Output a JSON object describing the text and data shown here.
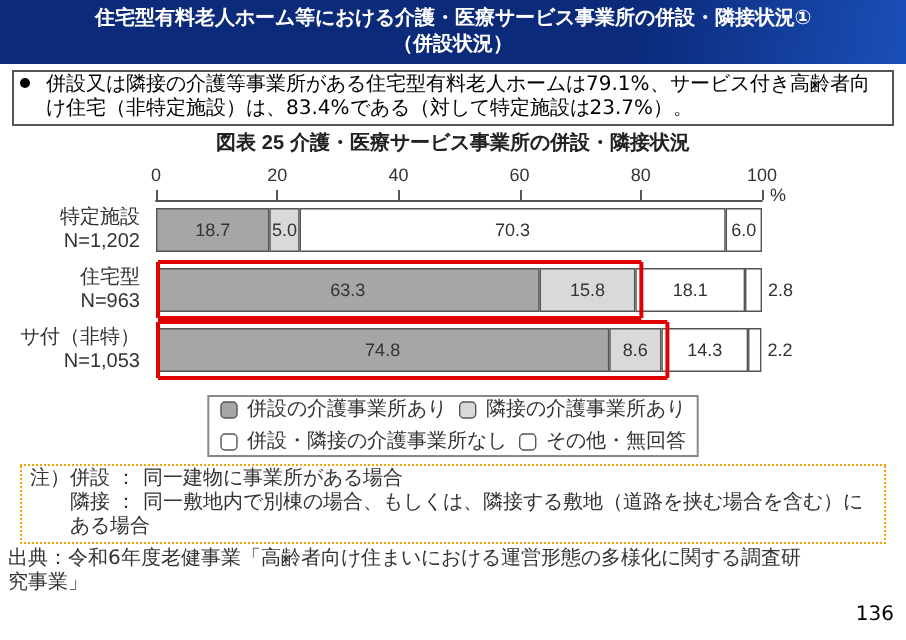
{
  "chart_data": {
    "type": "bar",
    "orientation": "horizontal",
    "stacked": true,
    "title": "住宅型有料老人ホーム等における介護・医療サービス事業所の併設・隣接状況①\n（併設状況）",
    "subtitle": "図表 25 介護・医療サービス事業所の併設・隣接状況",
    "xlabel": "%",
    "categories": [
      "特定施設\nN=1,202",
      "住宅型\nN=963",
      "サ付（非特）\nN=1,053"
    ],
    "series": [
      {
        "name": "併設の介護事業所あり",
        "color": "#a6a6a6",
        "values": [
          18.7,
          63.3,
          74.8
        ],
        "value_labels": [
          "18.7",
          "63.3",
          "74.8"
        ]
      },
      {
        "name": "隣接の介護事業所あり",
        "color": "#d9d9d9",
        "values": [
          5.0,
          15.8,
          8.6
        ],
        "value_labels": [
          "5.0",
          "15.8",
          "8.6"
        ]
      },
      {
        "name": "併設・隣接の介護事業所なし",
        "color": "#ffffff",
        "values": [
          70.3,
          18.1,
          14.3
        ],
        "value_labels": [
          "70.3",
          "18.1",
          "14.3"
        ]
      },
      {
        "name": "その他・無回答",
        "color": "#ffffff",
        "values": [
          6.0,
          2.8,
          2.2
        ],
        "value_labels": [
          "6.0",
          "2.8",
          "2.2"
        ]
      }
    ],
    "xlim": [
      0,
      100
    ],
    "xticks": [
      0,
      20,
      40,
      60,
      80,
      100
    ],
    "grid": false,
    "legend": "bottom",
    "annotations": [
      "併設又は隣接の介護等事業所がある住宅型有料老人ホームは79.1%、サービス付き高齢者向け住宅（非特定施設）は、83.4%である（対して特定施設は23.7%）。",
      "注）併設 ： 同一建物に事業所がある場合",
      "隣接 ： 同一敷地内で別棟の場合、もしくは、隣接する敷地（道路を挟む場合を含む）にある場合",
      "出典：令和6年度老健事業「高齢者向け住まいにおける運営形態の多様化に関する調査研究事業」",
      "136"
    ]
  }
}
